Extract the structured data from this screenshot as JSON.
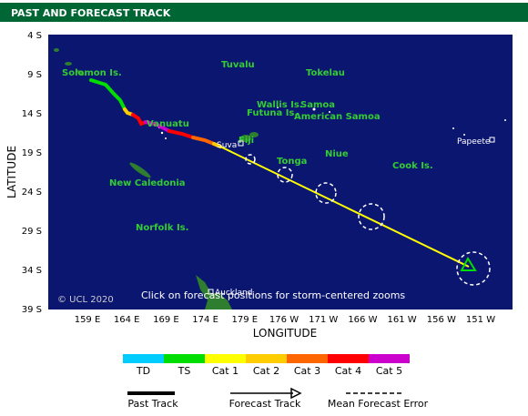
{
  "header": {
    "title": "PAST AND FORECAST TRACK"
  },
  "map": {
    "y_axis_title": "LATITUDE",
    "x_axis_title": "LONGITUDE",
    "lat_labels": [
      "4 S",
      "9 S",
      "14 S",
      "19 S",
      "24 S",
      "29 S",
      "34 S",
      "39 S"
    ],
    "lon_labels": [
      "159 E",
      "164 E",
      "169 E",
      "174 E",
      "179 E",
      "176 W",
      "171 W",
      "166 W",
      "161 W",
      "156 W",
      "151 W"
    ],
    "places": [
      "Solomon Is.",
      "Tuvalu",
      "Tokelau",
      "Wallis Is.",
      "Samoa",
      "Futuna Is.",
      "American Samoa",
      "Vanuatu",
      "Fiji",
      "Tonga",
      "Niue",
      "Cook Is.",
      "New Caledonia",
      "Norfolk Is."
    ],
    "cities": [
      "Suva",
      "Papeete",
      "Auckland"
    ],
    "copyright": "© UCL 2020",
    "hint": "Click on forecast positions for storm-centered zooms"
  },
  "legend": {
    "categories": [
      "TD",
      "TS",
      "Cat 1",
      "Cat 2",
      "Cat 3",
      "Cat 4",
      "Cat 5"
    ],
    "past_track": "Past Track",
    "forecast_track": "Forecast Track",
    "mean_forecast_error": "Mean Forecast Error"
  }
}
